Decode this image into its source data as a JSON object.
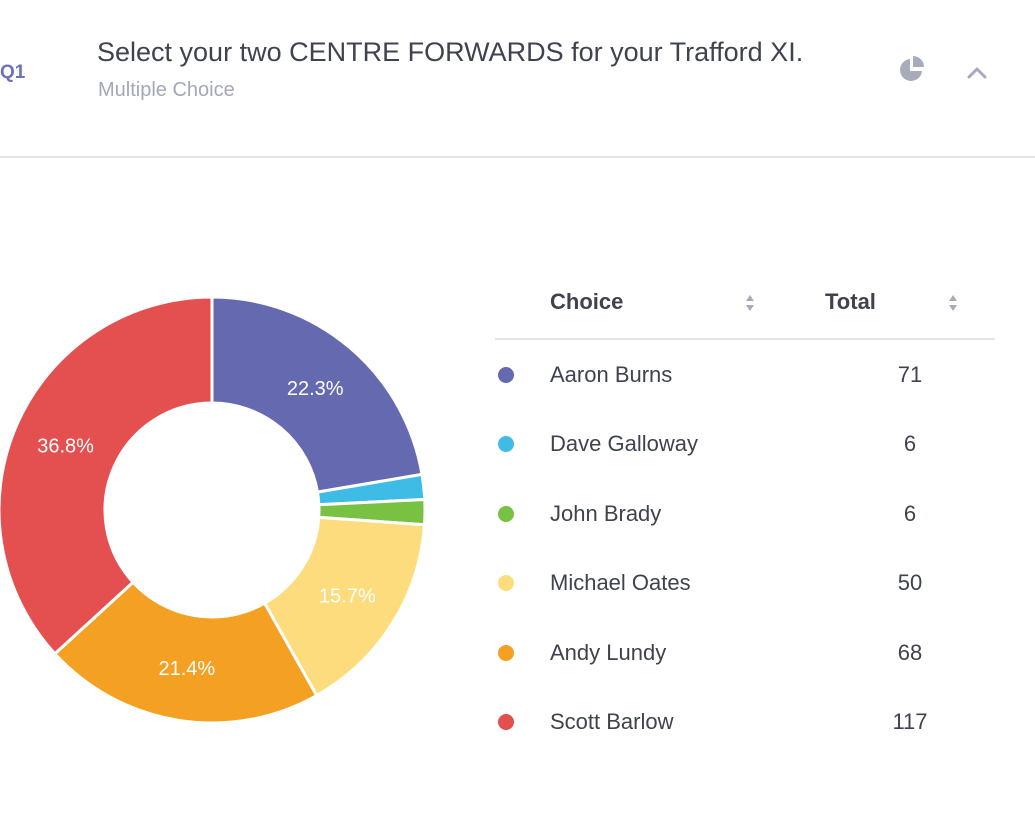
{
  "question": {
    "number": "Q1",
    "title": "Select your two CENTRE FORWARDS for your Trafford XI.",
    "type": "Multiple Choice"
  },
  "icons": {
    "chart_toggle": "pie-chart-icon",
    "collapse": "chevron-up-icon"
  },
  "colors": {
    "icon": "#a7abba"
  },
  "table": {
    "choice_header": "Choice",
    "total_header": "Total",
    "rows": [
      {
        "label": "Aaron Burns",
        "total": "71",
        "color": "#6469b0"
      },
      {
        "label": "Dave Galloway",
        "total": "6",
        "color": "#3fbce6"
      },
      {
        "label": "John Brady",
        "total": "6",
        "color": "#79c143"
      },
      {
        "label": "Michael Oates",
        "total": "50",
        "color": "#fcdc7c"
      },
      {
        "label": "Andy Lundy",
        "total": "68",
        "color": "#f4a023"
      },
      {
        "label": "Scott Barlow",
        "total": "117",
        "color": "#e44f50"
      }
    ]
  },
  "chart_data": {
    "type": "pie",
    "categories": [
      "Aaron Burns",
      "Dave Galloway",
      "John Brady",
      "Michael Oates",
      "Andy Lundy",
      "Scott Barlow"
    ],
    "values": [
      71,
      6,
      6,
      50,
      68,
      117
    ],
    "colors": [
      "#6469b0",
      "#3fbce6",
      "#79c143",
      "#fcdc7c",
      "#f4a023",
      "#e44f50"
    ],
    "labels": [
      "22.3%",
      "",
      "",
      "15.7%",
      "21.4%",
      "36.8%"
    ]
  }
}
